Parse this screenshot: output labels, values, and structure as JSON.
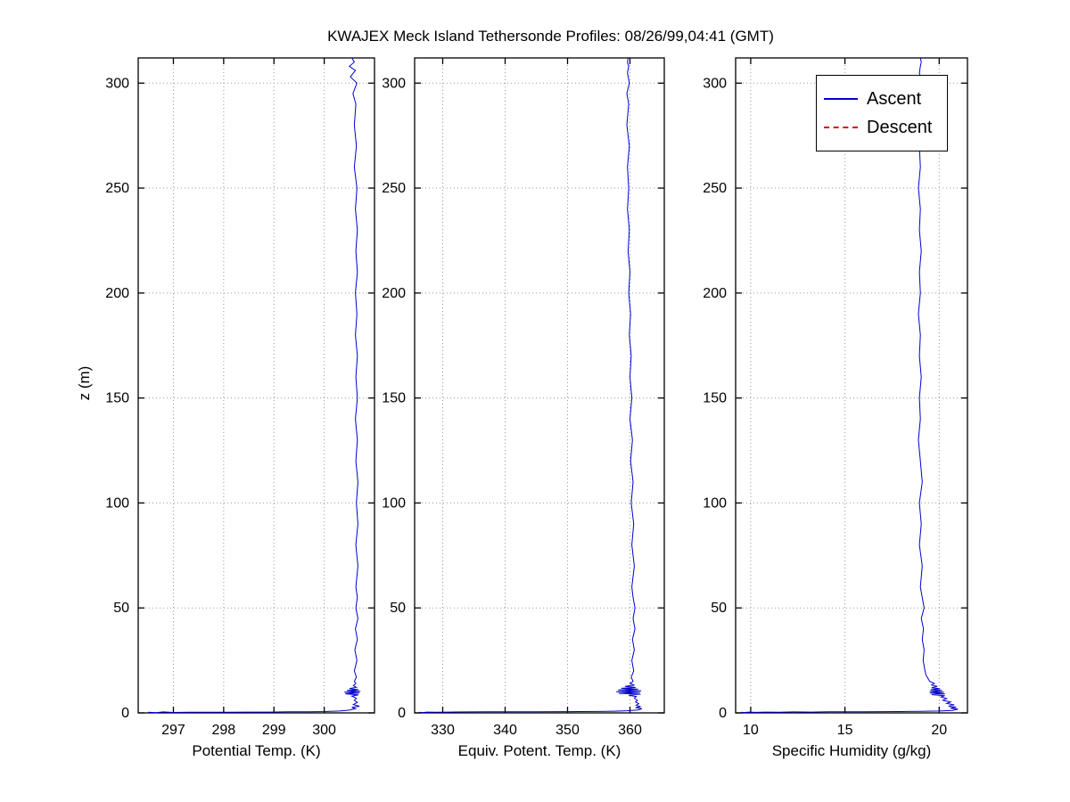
{
  "title": "KWAJEX Meck Island Tethersonde Profiles: 08/26/99,04:41 (GMT)",
  "ylabel": "z (m)",
  "legend": {
    "position": "top-right-of-third-panel",
    "entries": [
      {
        "label": "Ascent",
        "color": "#0000cc",
        "line_style": "solid"
      },
      {
        "label": "Descent",
        "color": "#dd0000",
        "line_style": "dashed"
      }
    ]
  },
  "grid_color": "#999999",
  "chart_data": [
    {
      "type": "line",
      "xlabel": "Potential Temp. (K)",
      "ylabel": "z (m)",
      "xlim": [
        296.3,
        301.0
      ],
      "ylim": [
        0,
        312
      ],
      "xticks": [
        297,
        298,
        299,
        300
      ],
      "yticks": [
        0,
        50,
        100,
        150,
        200,
        250,
        300
      ],
      "grid": true,
      "series": [
        {
          "name": "Ascent",
          "color": "#0000cc",
          "style": "solid",
          "points": [
            [
              296.5,
              0.3
            ],
            [
              296.65,
              0.1
            ],
            [
              296.8,
              0.45
            ],
            [
              297.0,
              0.2
            ],
            [
              297.3,
              0.35
            ],
            [
              297.7,
              0.3
            ],
            [
              298.1,
              0.35
            ],
            [
              298.5,
              0.4
            ],
            [
              298.9,
              0.4
            ],
            [
              299.3,
              0.5
            ],
            [
              299.7,
              0.55
            ],
            [
              300.0,
              0.65
            ],
            [
              300.3,
              0.9
            ],
            [
              300.5,
              1.3
            ],
            [
              300.62,
              2
            ],
            [
              300.55,
              2.6
            ],
            [
              300.7,
              3.2
            ],
            [
              300.58,
              4
            ],
            [
              300.66,
              5
            ],
            [
              300.6,
              6
            ],
            [
              300.64,
              7
            ],
            [
              300.55,
              8
            ],
            [
              300.68,
              8.6
            ],
            [
              300.42,
              9.1
            ],
            [
              300.7,
              9.5
            ],
            [
              300.4,
              9.9
            ],
            [
              300.72,
              10.3
            ],
            [
              300.45,
              10.7
            ],
            [
              300.68,
              11.1
            ],
            [
              300.5,
              11.6
            ],
            [
              300.64,
              12.2
            ],
            [
              300.58,
              13
            ],
            [
              300.63,
              14
            ],
            [
              300.6,
              15
            ],
            [
              300.64,
              17
            ],
            [
              300.6,
              20
            ],
            [
              300.65,
              25
            ],
            [
              300.61,
              30
            ],
            [
              300.66,
              35
            ],
            [
              300.62,
              40
            ],
            [
              300.67,
              45
            ],
            [
              300.63,
              50
            ],
            [
              300.66,
              55
            ],
            [
              300.63,
              60
            ],
            [
              300.67,
              70
            ],
            [
              300.63,
              80
            ],
            [
              300.67,
              90
            ],
            [
              300.64,
              100
            ],
            [
              300.67,
              110
            ],
            [
              300.63,
              120
            ],
            [
              300.66,
              130
            ],
            [
              300.62,
              140
            ],
            [
              300.66,
              150
            ],
            [
              300.63,
              160
            ],
            [
              300.66,
              170
            ],
            [
              300.62,
              180
            ],
            [
              300.65,
              190
            ],
            [
              300.62,
              200
            ],
            [
              300.66,
              210
            ],
            [
              300.63,
              220
            ],
            [
              300.66,
              230
            ],
            [
              300.62,
              240
            ],
            [
              300.65,
              250
            ],
            [
              300.6,
              260
            ],
            [
              300.64,
              270
            ],
            [
              300.6,
              280
            ],
            [
              300.63,
              290
            ],
            [
              300.57,
              295
            ],
            [
              300.65,
              300
            ],
            [
              300.52,
              303
            ],
            [
              300.62,
              306
            ],
            [
              300.5,
              308
            ],
            [
              300.6,
              310
            ],
            [
              300.55,
              312
            ]
          ]
        },
        {
          "name": "Descent",
          "color": "#dd0000",
          "style": "dashed",
          "points": []
        }
      ]
    },
    {
      "type": "line",
      "xlabel": "Equiv. Potent. Temp. (K)",
      "ylabel": "z (m)",
      "xlim": [
        325.5,
        365.5
      ],
      "ylim": [
        0,
        312
      ],
      "xticks": [
        330,
        340,
        350,
        360
      ],
      "yticks": [
        0,
        50,
        100,
        150,
        200,
        250,
        300
      ],
      "grid": true,
      "series": [
        {
          "name": "Ascent",
          "color": "#0000cc",
          "style": "solid",
          "points": [
            [
              326.3,
              0.3
            ],
            [
              326.8,
              0.15
            ],
            [
              327.5,
              0.4
            ],
            [
              329,
              0.3
            ],
            [
              331,
              0.4
            ],
            [
              334,
              0.45
            ],
            [
              337,
              0.5
            ],
            [
              341,
              0.5
            ],
            [
              345,
              0.55
            ],
            [
              349,
              0.6
            ],
            [
              352,
              0.65
            ],
            [
              355,
              0.7
            ],
            [
              357.5,
              0.8
            ],
            [
              359.5,
              1.0
            ],
            [
              361.3,
              1.4
            ],
            [
              361.9,
              2.0
            ],
            [
              360.9,
              2.5
            ],
            [
              361.7,
              3.0
            ],
            [
              361.0,
              3.6
            ],
            [
              361.4,
              4.4
            ],
            [
              360.9,
              5.2
            ],
            [
              361.2,
              6.0
            ],
            [
              360.7,
              7.0
            ],
            [
              361.0,
              7.8
            ],
            [
              359.8,
              8.4
            ],
            [
              361.7,
              8.9
            ],
            [
              358.2,
              9.3
            ],
            [
              361.6,
              9.7
            ],
            [
              357.8,
              10.1
            ],
            [
              361.8,
              10.5
            ],
            [
              358.1,
              10.9
            ],
            [
              361.3,
              11.3
            ],
            [
              358.6,
              11.7
            ],
            [
              360.9,
              12.1
            ],
            [
              359.2,
              12.6
            ],
            [
              360.7,
              13.2
            ],
            [
              360.0,
              14
            ],
            [
              360.5,
              15
            ],
            [
              360.2,
              17
            ],
            [
              360.6,
              20
            ],
            [
              360.3,
              25
            ],
            [
              360.7,
              30
            ],
            [
              360.4,
              35
            ],
            [
              360.8,
              40
            ],
            [
              360.5,
              45
            ],
            [
              360.8,
              50
            ],
            [
              360.5,
              55
            ],
            [
              360.3,
              60
            ],
            [
              360.7,
              70
            ],
            [
              360.3,
              80
            ],
            [
              360.6,
              90
            ],
            [
              360.2,
              100
            ],
            [
              360.5,
              110
            ],
            [
              360.1,
              120
            ],
            [
              360.4,
              130
            ],
            [
              360.0,
              140
            ],
            [
              360.3,
              150
            ],
            [
              360.0,
              160
            ],
            [
              360.2,
              170
            ],
            [
              359.9,
              180
            ],
            [
              360.1,
              190
            ],
            [
              359.8,
              200
            ],
            [
              360.0,
              210
            ],
            [
              359.7,
              220
            ],
            [
              359.9,
              230
            ],
            [
              359.6,
              240
            ],
            [
              359.8,
              250
            ],
            [
              359.6,
              260
            ],
            [
              359.9,
              270
            ],
            [
              359.5,
              280
            ],
            [
              359.8,
              290
            ],
            [
              359.5,
              295
            ],
            [
              359.9,
              300
            ],
            [
              359.6,
              305
            ],
            [
              359.8,
              308
            ],
            [
              359.6,
              310
            ],
            [
              359.7,
              312
            ]
          ]
        },
        {
          "name": "Descent",
          "color": "#dd0000",
          "style": "dashed",
          "points": []
        }
      ]
    },
    {
      "type": "line",
      "xlabel": "Specific Humidity (g/kg)",
      "ylabel": "z (m)",
      "xlim": [
        9.2,
        21.5
      ],
      "ylim": [
        0,
        312
      ],
      "xticks": [
        10,
        15,
        20
      ],
      "yticks": [
        0,
        50,
        100,
        150,
        200,
        250,
        300
      ],
      "grid": true,
      "series": [
        {
          "name": "Ascent",
          "color": "#0000cc",
          "style": "solid",
          "points": [
            [
              9.5,
              0.35
            ],
            [
              9.65,
              0.15
            ],
            [
              9.9,
              0.4
            ],
            [
              10.3,
              0.25
            ],
            [
              10.8,
              0.4
            ],
            [
              11.5,
              0.35
            ],
            [
              12.3,
              0.45
            ],
            [
              13.2,
              0.4
            ],
            [
              14.1,
              0.5
            ],
            [
              15.0,
              0.5
            ],
            [
              16.0,
              0.55
            ],
            [
              17.0,
              0.6
            ],
            [
              18.0,
              0.65
            ],
            [
              19.0,
              0.75
            ],
            [
              20.0,
              0.9
            ],
            [
              20.7,
              1.2
            ],
            [
              21.0,
              1.8
            ],
            [
              20.6,
              2.2
            ],
            [
              20.9,
              2.7
            ],
            [
              20.5,
              3.2
            ],
            [
              20.8,
              3.8
            ],
            [
              20.4,
              4.5
            ],
            [
              20.6,
              5.2
            ],
            [
              20.2,
              6.0
            ],
            [
              20.4,
              6.8
            ],
            [
              20.1,
              7.6
            ],
            [
              20.3,
              8.2
            ],
            [
              19.6,
              8.7
            ],
            [
              20.3,
              9.1
            ],
            [
              19.5,
              9.5
            ],
            [
              20.25,
              9.9
            ],
            [
              19.5,
              10.3
            ],
            [
              20.15,
              10.7
            ],
            [
              19.55,
              11.1
            ],
            [
              20.05,
              11.5
            ],
            [
              19.6,
              12.0
            ],
            [
              19.9,
              12.6
            ],
            [
              19.6,
              13.3
            ],
            [
              19.75,
              14
            ],
            [
              19.5,
              15
            ],
            [
              19.4,
              16.5
            ],
            [
              19.3,
              18
            ],
            [
              19.25,
              20
            ],
            [
              19.15,
              25
            ],
            [
              19.2,
              30
            ],
            [
              19.1,
              35
            ],
            [
              19.17,
              40
            ],
            [
              19.05,
              45
            ],
            [
              19.2,
              50
            ],
            [
              19.1,
              55
            ],
            [
              19.0,
              60
            ],
            [
              19.1,
              70
            ],
            [
              18.95,
              80
            ],
            [
              19.05,
              90
            ],
            [
              18.95,
              100
            ],
            [
              19.1,
              110
            ],
            [
              19.0,
              120
            ],
            [
              18.9,
              130
            ],
            [
              19.0,
              140
            ],
            [
              18.95,
              150
            ],
            [
              19.05,
              160
            ],
            [
              18.95,
              170
            ],
            [
              19.0,
              180
            ],
            [
              18.9,
              190
            ],
            [
              19.0,
              200
            ],
            [
              18.95,
              210
            ],
            [
              19.05,
              220
            ],
            [
              18.95,
              230
            ],
            [
              19.0,
              240
            ],
            [
              18.9,
              250
            ],
            [
              19.0,
              260
            ],
            [
              18.95,
              270
            ],
            [
              19.05,
              280
            ],
            [
              19.0,
              290
            ],
            [
              19.05,
              300
            ],
            [
              18.95,
              305
            ],
            [
              19.0,
              308
            ],
            [
              19.05,
              310
            ],
            [
              19.0,
              312
            ]
          ]
        },
        {
          "name": "Descent",
          "color": "#dd0000",
          "style": "dashed",
          "points": []
        }
      ]
    }
  ]
}
